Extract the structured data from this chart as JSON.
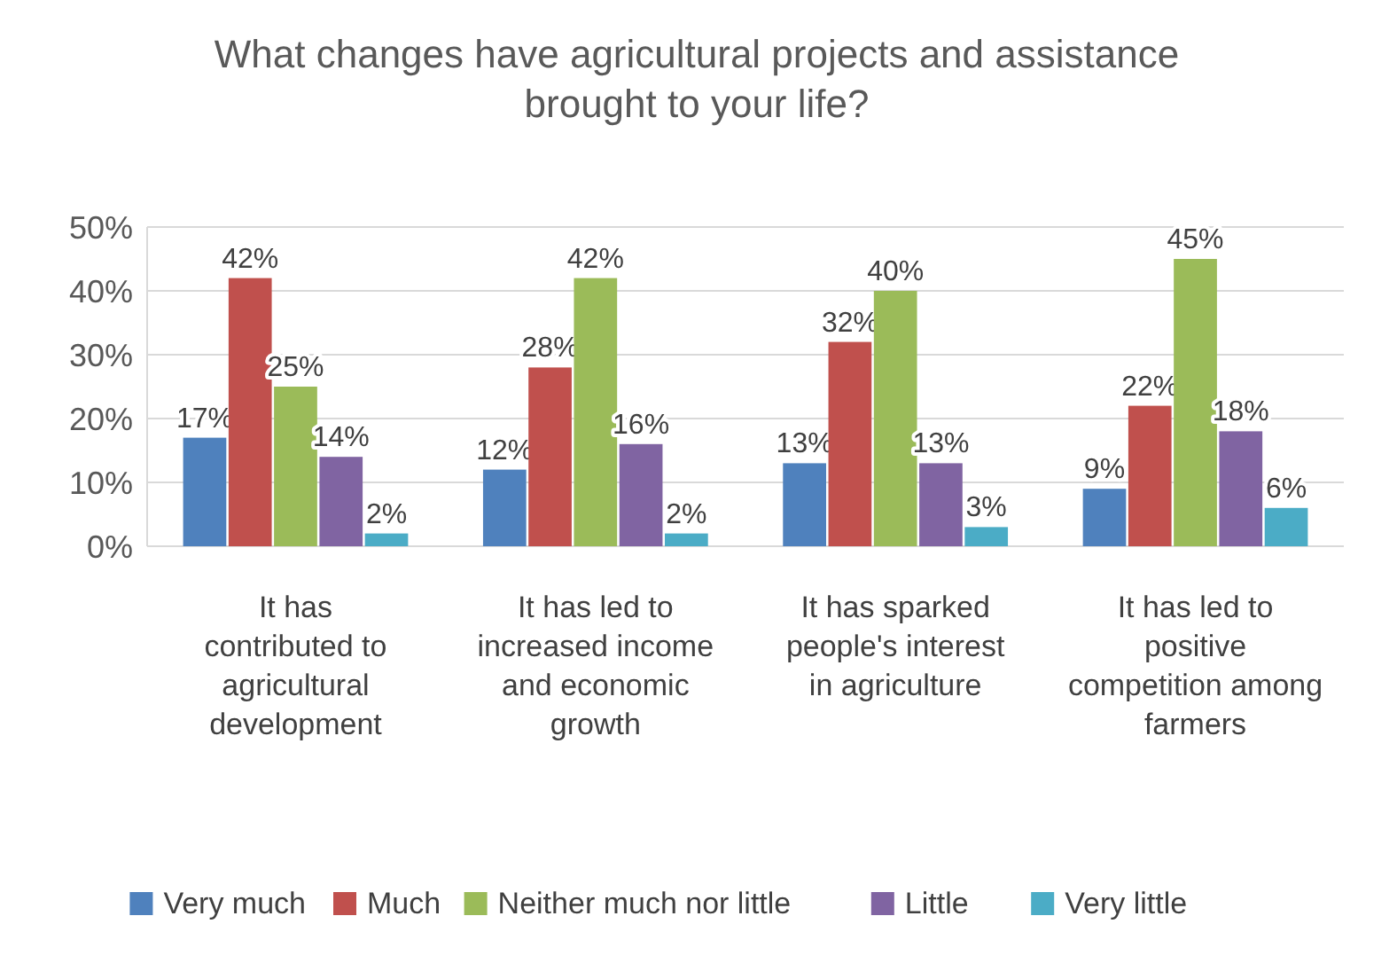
{
  "chart_data": {
    "type": "bar",
    "title": "What changes have agricultural projects and assistance brought to your life?",
    "categories": [
      "It has contributed to agricultural development",
      "It has led to increased income and economic growth",
      "It has sparked people's interest in agriculture",
      "It has led to positive competition among farmers"
    ],
    "series": [
      {
        "name": "Very much",
        "color": "#4f81bd",
        "values": [
          17,
          12,
          13,
          9
        ],
        "value_labels": [
          "17%",
          "12%",
          "13%",
          "9%"
        ]
      },
      {
        "name": "Much",
        "color": "#c0504d",
        "values": [
          42,
          28,
          32,
          22
        ],
        "value_labels": [
          "42%",
          "28%",
          "32%",
          "22%"
        ]
      },
      {
        "name": "Neither much nor little",
        "color": "#9bbb59",
        "values": [
          25,
          42,
          40,
          45
        ],
        "value_labels": [
          "25%",
          "42%",
          "40%",
          "45%"
        ]
      },
      {
        "name": "Little",
        "color": "#8064a2",
        "values": [
          14,
          16,
          13,
          18
        ],
        "value_labels": [
          "14%",
          "16%",
          "13%",
          "18%"
        ]
      },
      {
        "name": "Very little",
        "color": "#4bacc6",
        "values": [
          2,
          2,
          3,
          6
        ],
        "value_labels": [
          "2%",
          "2%",
          "3%",
          "6%"
        ]
      }
    ],
    "ylim": [
      0,
      50
    ],
    "yticks": [
      {
        "value": 0,
        "label": "0%"
      },
      {
        "value": 10,
        "label": "10%"
      },
      {
        "value": 20,
        "label": "20%"
      },
      {
        "value": 30,
        "label": "30%"
      },
      {
        "value": 40,
        "label": "40%"
      },
      {
        "value": 50,
        "label": "50%"
      }
    ],
    "grid": "y",
    "legend": "bottom"
  }
}
